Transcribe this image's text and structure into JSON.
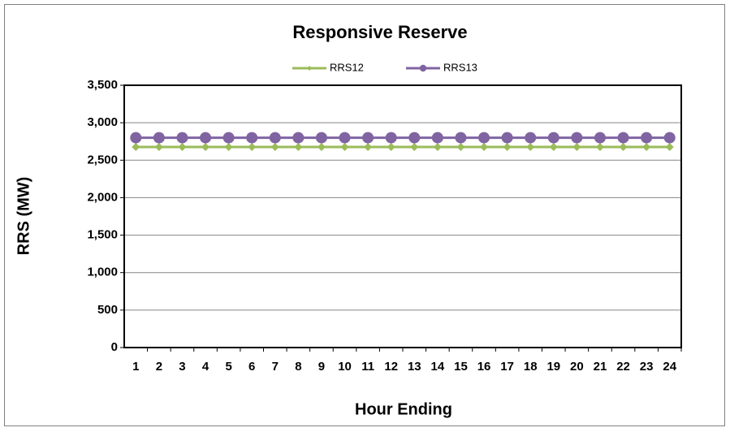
{
  "chart_data": {
    "type": "line",
    "title": "Responsive Reserve",
    "x_label": "Hour Ending",
    "y_label": "RRS (MW)",
    "categories": [
      "1",
      "2",
      "3",
      "4",
      "5",
      "6",
      "7",
      "8",
      "9",
      "10",
      "11",
      "12",
      "13",
      "14",
      "15",
      "16",
      "17",
      "18",
      "19",
      "20",
      "21",
      "22",
      "23",
      "24"
    ],
    "series": [
      {
        "name": "RRS12",
        "color": "#9bbb59",
        "marker": "diamond",
        "values": [
          2676,
          2676,
          2676,
          2676,
          2676,
          2676,
          2676,
          2676,
          2676,
          2676,
          2676,
          2676,
          2676,
          2676,
          2676,
          2676,
          2676,
          2676,
          2676,
          2676,
          2676,
          2676,
          2676,
          2676
        ]
      },
      {
        "name": "RRS13",
        "color": "#8064a2",
        "marker": "circle",
        "values": [
          2800,
          2800,
          2800,
          2800,
          2800,
          2800,
          2800,
          2800,
          2800,
          2800,
          2800,
          2800,
          2800,
          2800,
          2800,
          2800,
          2800,
          2800,
          2800,
          2800,
          2800,
          2800,
          2800,
          2800
        ]
      }
    ],
    "ylim": [
      0,
      3500
    ],
    "yticks": [
      0,
      500,
      {
        "value": 1000,
        "label": "1,000"
      },
      {
        "value": 1500,
        "label": "1,500"
      },
      {
        "value": 2000,
        "label": "2,000"
      },
      {
        "value": 2500,
        "label": "2,500"
      },
      {
        "value": 3000,
        "label": "3,000"
      },
      {
        "value": 3500,
        "label": "3,500"
      }
    ],
    "grid": true,
    "legend": "top"
  }
}
